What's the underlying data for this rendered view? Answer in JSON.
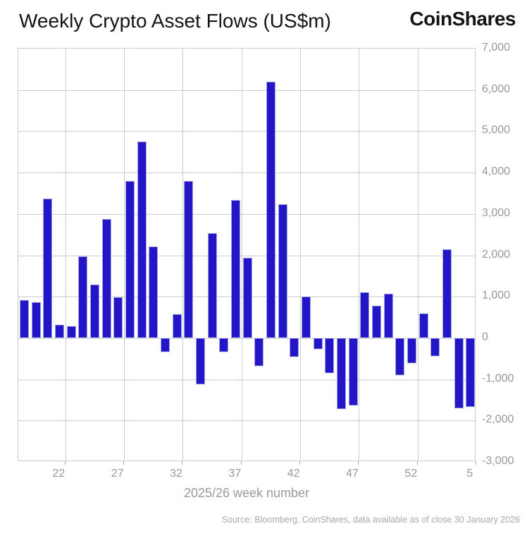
{
  "header": {
    "title": "Weekly Crypto Asset Flows (US$m)",
    "logo": "CoinShares"
  },
  "chart_data": {
    "type": "bar",
    "title": "Weekly Crypto Asset Flows (US$m)",
    "xlabel": "2025/26 week number",
    "ylabel": "",
    "ylim": [
      -3000,
      7000
    ],
    "ytick_interval": 1000,
    "ytick_labels": [
      "7,000",
      "6,000",
      "5,000",
      "4,000",
      "3,000",
      "2,000",
      "1,000",
      "0",
      "-1,000",
      "-2,000",
      "-3,000"
    ],
    "grid": true,
    "legend_position": "none",
    "bar_color": "#2315C8",
    "grid_color": "#cccccc",
    "label_color": "#989898",
    "categories": [
      19,
      20,
      21,
      22,
      23,
      24,
      25,
      26,
      27,
      28,
      29,
      30,
      31,
      32,
      33,
      34,
      35,
      36,
      37,
      38,
      39,
      40,
      41,
      42,
      43,
      44,
      45,
      46,
      47,
      48,
      49,
      50,
      51,
      52,
      1,
      2,
      3,
      4,
      5
    ],
    "values": [
      920,
      860,
      3370,
      320,
      280,
      1970,
      1290,
      2880,
      980,
      3800,
      4750,
      2210,
      -340,
      580,
      3800,
      -1130,
      2530,
      -340,
      3330,
      1940,
      -680,
      6200,
      3230,
      -470,
      1010,
      -270,
      -850,
      -1730,
      -1640,
      1100,
      790,
      1080,
      -900,
      -610,
      590,
      -440,
      2150,
      -1700,
      -1670
    ],
    "xtick_weeks": [
      22,
      27,
      32,
      37,
      42,
      47,
      52,
      5
    ]
  },
  "footer": {
    "source": "Source: Bloomberg, CoinShares, data available as of close 30 January 2026"
  }
}
